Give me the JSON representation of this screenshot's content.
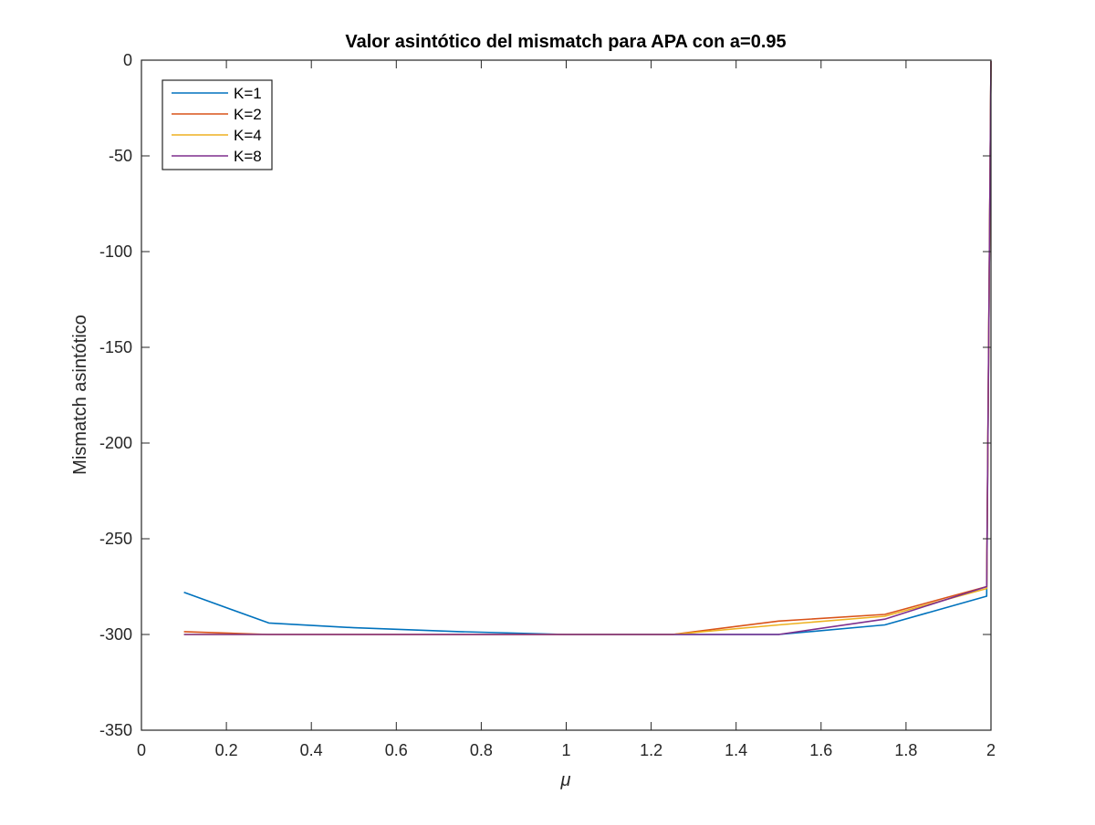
{
  "chart_data": {
    "type": "line",
    "title": "Valor asintótico del mismatch para APA con a=0.95",
    "xlabel": "μ",
    "ylabel": "Mismatch asintótico",
    "xlim": [
      0,
      2
    ],
    "ylim": [
      -350,
      0
    ],
    "xticks": [
      0,
      0.2,
      0.4,
      0.6,
      0.8,
      1,
      1.2,
      1.4,
      1.6,
      1.8,
      2
    ],
    "xtick_labels": [
      "0",
      "0.2",
      "0.4",
      "0.6",
      "0.8",
      "1",
      "1.2",
      "1.4",
      "1.6",
      "1.8",
      "2"
    ],
    "yticks": [
      0,
      -50,
      -100,
      -150,
      -200,
      -250,
      -300,
      -350
    ],
    "ytick_labels": [
      "0",
      "-50",
      "-100",
      "-150",
      "-200",
      "-250",
      "-300",
      "-350"
    ],
    "grid": false,
    "box": true,
    "legend_position": "top-left",
    "x": [
      0.1,
      0.3,
      0.5,
      0.75,
      1.0,
      1.25,
      1.5,
      1.75,
      1.99,
      2.0
    ],
    "series": [
      {
        "name": "K=1",
        "color": "#0072BD",
        "values": [
          -278,
          -294,
          -296.5,
          -298.5,
          -300,
          -300,
          -300,
          -295,
          -280,
          -0.5
        ]
      },
      {
        "name": "K=2",
        "color": "#D95319",
        "values": [
          -298.5,
          -300,
          -300,
          -300,
          -300,
          -300,
          -293,
          -289.5,
          -275,
          -0.5
        ]
      },
      {
        "name": "K=4",
        "color": "#EDB120",
        "values": [
          -300,
          -300,
          -300,
          -300,
          -300,
          -300,
          -295,
          -290.5,
          -276,
          -0.5
        ]
      },
      {
        "name": "K=8",
        "color": "#7E2F8E",
        "values": [
          -300,
          -300,
          -300,
          -300,
          -300,
          -300,
          -300,
          -292,
          -275,
          -0.5
        ]
      }
    ]
  }
}
